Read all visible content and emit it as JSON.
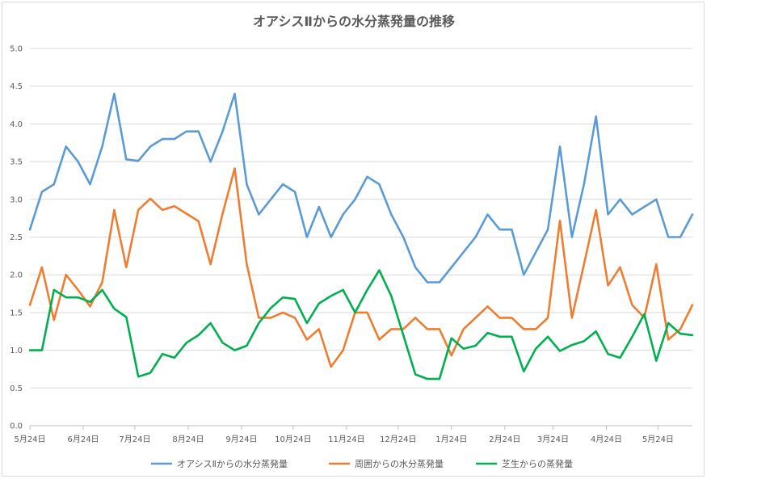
{
  "chart_data": {
    "type": "line",
    "title": "オアシスⅡからの水分蒸発量の推移",
    "xlabel": "",
    "ylabel": "",
    "ylim": [
      0,
      5
    ],
    "yticks": [
      "0.0",
      "0.5",
      "1.0",
      "1.5",
      "2.0",
      "2.5",
      "3.0",
      "3.5",
      "4.0",
      "4.5",
      "5.0"
    ],
    "grid": true,
    "legend_position": "bottom",
    "x_tick_labels": [
      "5月24日",
      "6月24日",
      "7月24日",
      "8月24日",
      "9月24日",
      "10月24日",
      "11月24日",
      "12月24日",
      "1月24日",
      "2月24日",
      "3月24日",
      "4月24日",
      "5月24日"
    ],
    "x_tick_days": [
      0,
      31,
      61,
      92,
      123,
      153,
      184,
      214,
      245,
      276,
      304,
      335,
      365
    ],
    "x": [
      0,
      7,
      14,
      21,
      28,
      35,
      42,
      49,
      56,
      63,
      70,
      77,
      84,
      91,
      98,
      105,
      112,
      119,
      126,
      133,
      140,
      147,
      154,
      161,
      168,
      175,
      182,
      189,
      196,
      203,
      210,
      217,
      224,
      231,
      238,
      245,
      252,
      259,
      266,
      273,
      280,
      287,
      294,
      301,
      308,
      315,
      322,
      329,
      336,
      343,
      350,
      357,
      364,
      371,
      378,
      385
    ],
    "series": [
      {
        "name": "オアシスⅡからの水分蒸発量",
        "color": "#5b9bd5",
        "values": [
          2.6,
          3.1,
          3.2,
          3.7,
          3.5,
          3.2,
          3.7,
          4.4,
          3.53,
          3.51,
          3.7,
          3.8,
          3.8,
          3.9,
          3.9,
          3.5,
          3.9,
          4.4,
          3.2,
          2.8,
          3.0,
          3.2,
          3.1,
          2.5,
          2.9,
          2.5,
          2.8,
          3.0,
          3.3,
          3.2,
          2.8,
          2.5,
          2.1,
          1.9,
          1.9,
          2.1,
          2.3,
          2.5,
          2.8,
          2.6,
          2.6,
          2.0,
          2.3,
          2.6,
          3.7,
          2.5,
          3.2,
          4.1,
          2.8,
          3.0,
          2.8,
          2.9,
          3.0,
          2.5,
          2.5,
          2.8
        ]
      },
      {
        "name": "周囲からの水分蒸発量",
        "color": "#ed7d31",
        "values": [
          1.6,
          2.1,
          1.4,
          2.0,
          1.8,
          1.58,
          1.9,
          2.86,
          2.1,
          2.86,
          3.01,
          2.86,
          2.91,
          2.81,
          2.71,
          2.14,
          2.81,
          3.41,
          2.14,
          1.43,
          1.43,
          1.5,
          1.43,
          1.14,
          1.28,
          0.78,
          1.0,
          1.5,
          1.5,
          1.14,
          1.28,
          1.28,
          1.43,
          1.28,
          1.28,
          0.93,
          1.28,
          1.43,
          1.58,
          1.43,
          1.43,
          1.28,
          1.28,
          1.43,
          2.72,
          1.43,
          2.14,
          2.86,
          1.86,
          2.1,
          1.6,
          1.43,
          2.14,
          1.14,
          1.28,
          1.6
        ]
      },
      {
        "name": "芝生からの蒸発量",
        "color": "#00b050",
        "values": [
          1.0,
          1.0,
          1.8,
          1.7,
          1.7,
          1.64,
          1.8,
          1.55,
          1.44,
          0.65,
          0.7,
          0.95,
          0.9,
          1.1,
          1.2,
          1.36,
          1.1,
          1.0,
          1.06,
          1.36,
          1.56,
          1.7,
          1.68,
          1.36,
          1.62,
          1.72,
          1.8,
          1.5,
          1.8,
          2.06,
          1.72,
          1.2,
          0.68,
          0.62,
          0.62,
          1.16,
          1.02,
          1.06,
          1.23,
          1.18,
          1.18,
          0.72,
          1.02,
          1.18,
          0.99,
          1.07,
          1.12,
          1.25,
          0.95,
          0.9,
          1.18,
          1.48,
          0.86,
          1.36,
          1.22,
          1.2
        ]
      }
    ]
  }
}
